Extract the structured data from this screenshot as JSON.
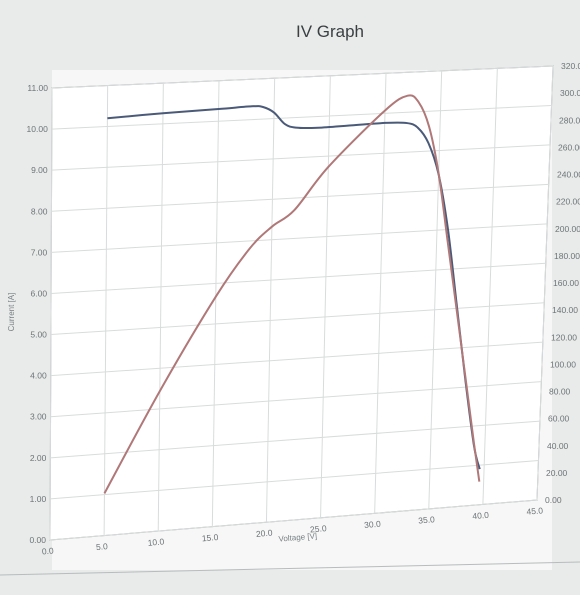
{
  "chart_data": {
    "type": "line",
    "title": "IV Graph",
    "xlabel": "Voltage [V]",
    "ylabel": "Current [A]",
    "xlim": [
      0,
      45
    ],
    "ylim_left": [
      0,
      11
    ],
    "ylim_right": [
      0,
      320
    ],
    "x_ticks": [
      "0.0",
      "5.0",
      "10.0",
      "15.0",
      "20.0",
      "25.0",
      "30.0",
      "35.0",
      "40.0",
      "45.0"
    ],
    "y_left_ticks": [
      "0.00",
      "1.00",
      "2.00",
      "3.00",
      "4.00",
      "5.00",
      "6.00",
      "7.00",
      "8.00",
      "9.00",
      "10.00",
      "11.00"
    ],
    "y_right_ticks": [
      "0.00",
      "20.00",
      "40.00",
      "60.00",
      "80.00",
      "100.00",
      "120.00",
      "140.00",
      "160.00",
      "180.00",
      "200.00",
      "220.00",
      "240.00",
      "260.00",
      "280.00",
      "300.00",
      "320.00"
    ],
    "grid": true,
    "series": [
      {
        "name": "",
        "axis": "left",
        "color": "#4a5a78",
        "x": [
          5,
          10,
          15,
          18,
          19,
          20,
          21,
          22,
          24,
          27,
          30,
          32,
          33,
          34,
          35,
          36,
          37,
          38,
          39,
          39.6
        ],
        "y": [
          10.2,
          10.26,
          10.3,
          10.33,
          10.3,
          10.15,
          9.85,
          9.75,
          9.72,
          9.74,
          9.76,
          9.73,
          9.6,
          9.2,
          8.4,
          7.0,
          5.1,
          3.2,
          1.5,
          0.9
        ]
      },
      {
        "name": "",
        "axis": "right",
        "color": "#b07878",
        "x": [
          5,
          10,
          15,
          18,
          20,
          22,
          25,
          30,
          32,
          33,
          34,
          35,
          36,
          37,
          38,
          39,
          39.6
        ],
        "y": [
          30,
          100,
          165,
          198,
          213,
          224,
          254,
          293,
          303,
          298,
          280,
          245,
          195,
          145,
          95,
          45,
          17
        ]
      }
    ]
  }
}
